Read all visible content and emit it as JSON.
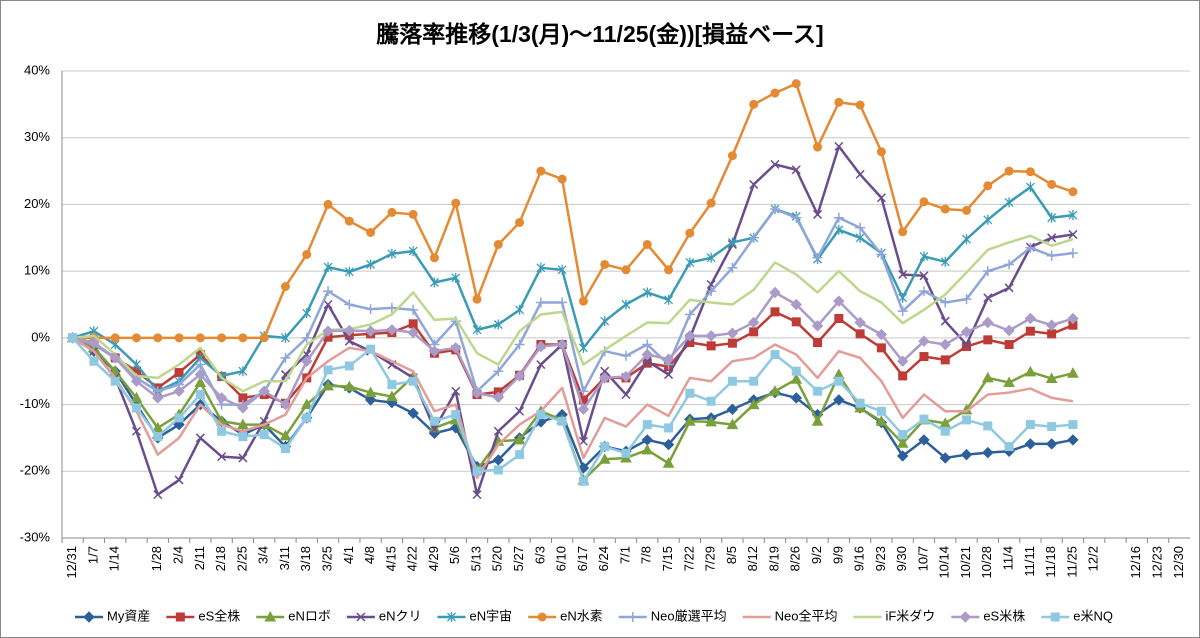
{
  "chart_data": {
    "type": "line",
    "title": "騰落率推移(1/3(月)～11/25(金))[損益ベース]",
    "categories": [
      "12/31",
      "1/7",
      "1/14",
      null,
      "1/28",
      "2/4",
      "2/11",
      "2/18",
      "2/25",
      "3/4",
      "3/11",
      "3/18",
      "3/25",
      "4/1",
      "4/8",
      "4/15",
      "4/22",
      "4/29",
      "5/6",
      "5/13",
      "5/20",
      "5/27",
      "6/3",
      "6/10",
      "6/17",
      "6/24",
      "7/1",
      "7/8",
      "7/15",
      "7/22",
      "7/29",
      "8/5",
      "8/12",
      "8/19",
      "8/26",
      "9/2",
      "9/9",
      "9/16",
      "9/23",
      "9/30",
      "10/7",
      "10/14",
      "10/21",
      "10/28",
      "11/4",
      "11/11",
      "11/18",
      "11/25",
      "12/2",
      null,
      "12/16",
      "12/23",
      "12/30"
    ],
    "ylim": [
      -30,
      40
    ],
    "yticks": [
      {
        "value": -30,
        "label": "-30%"
      },
      {
        "value": -20,
        "label": "-20%"
      },
      {
        "value": -10,
        "label": "-10%"
      },
      {
        "value": 0,
        "label": "0%"
      },
      {
        "value": 10,
        "label": "10%"
      },
      {
        "value": 20,
        "label": "20%"
      },
      {
        "value": 30,
        "label": "30%"
      },
      {
        "value": 40,
        "label": "40%"
      }
    ],
    "grid": true,
    "legend": "bottom",
    "series": [
      {
        "name": "My資産",
        "color": "#2d5f9c",
        "marker": "diamond",
        "values": [
          0,
          -2,
          -5,
          -10,
          -15,
          -13,
          -10,
          -12.5,
          -14.5,
          -13,
          -16.3,
          -12,
          -7,
          -7.5,
          -9.3,
          -9.7,
          -11.3,
          -14.3,
          -13.5,
          -19.3,
          -18.3,
          -15,
          -12.6,
          -11.5,
          -19.5,
          -16.3,
          -17,
          -15.3,
          -16,
          -12.2,
          -12,
          -10.7,
          -9.3,
          -8.2,
          -9,
          -11.5,
          -9.3,
          -10.5,
          -12.7,
          -17.7,
          -15.3,
          -18,
          -17.5,
          -17.2,
          -17,
          -15.9,
          -15.9,
          -15.3,
          null,
          null,
          null,
          null,
          null
        ]
      },
      {
        "name": "eS全株",
        "color": "#be3b36",
        "marker": "square",
        "values": [
          0,
          -1,
          -3,
          -5,
          -7.5,
          -5.2,
          -2.5,
          -5.8,
          -9,
          -8.5,
          -9.8,
          -6,
          0.1,
          0.4,
          0.6,
          0.8,
          2.1,
          -2.3,
          -1.8,
          -8.5,
          -8.1,
          -5.6,
          -1,
          -1,
          -9.3,
          -6,
          -6,
          -3.8,
          -4.3,
          -0.7,
          -1.2,
          -0.8,
          0.9,
          3.9,
          2.4,
          -0.7,
          2.9,
          0.6,
          -1.5,
          -5.7,
          -2.8,
          -3.3,
          -1.3,
          -0.3,
          -1,
          1,
          0.6,
          1.9,
          null,
          null,
          null,
          null,
          null
        ]
      },
      {
        "name": "eNロボ",
        "color": "#7aa03b",
        "marker": "triangle",
        "values": [
          0,
          -1.5,
          -5,
          -9,
          -13.5,
          -11.5,
          -6.7,
          -12.5,
          -13,
          -13,
          -14.7,
          -10,
          -7.2,
          -7.3,
          -8.2,
          -8.8,
          -5.8,
          -13.5,
          -12.3,
          -19.8,
          -15.5,
          -15.3,
          -11,
          -12.3,
          -21.3,
          -18.2,
          -18,
          -16.8,
          -18.8,
          -12.5,
          -12.6,
          -13,
          -10,
          -8,
          -6.2,
          -12.5,
          -5.5,
          -10.5,
          -12.5,
          -15.8,
          -12.3,
          -12.8,
          -10.8,
          -6,
          -6.7,
          -5.1,
          -6.1,
          -5.3,
          null,
          null,
          null,
          null,
          null
        ]
      },
      {
        "name": "eNクリ",
        "color": "#6a4d8c",
        "marker": "x",
        "values": [
          0,
          -2,
          -6,
          -14,
          -23.5,
          -21.3,
          -15,
          -17.8,
          -18,
          -12.5,
          -5.5,
          -2.5,
          5,
          -0.5,
          -2,
          -4,
          -6,
          -13.7,
          -8,
          -23.5,
          -14,
          -11,
          -4,
          -1,
          -15.5,
          -5,
          -8.5,
          -3.5,
          -5.5,
          0,
          8,
          14,
          23,
          26,
          25.2,
          18.5,
          28.7,
          24.5,
          21,
          9.5,
          9.3,
          2.5,
          -1,
          6,
          7.5,
          13.6,
          15,
          15.5,
          null,
          null,
          null,
          null,
          null
        ]
      },
      {
        "name": "eN宇宙",
        "color": "#3a9bb6",
        "marker": "star",
        "values": [
          0,
          1,
          -1,
          -4,
          -8,
          -6.5,
          -3,
          -5.7,
          -5,
          0.3,
          0,
          3.7,
          10.6,
          9.9,
          11,
          12.6,
          13,
          8.3,
          9,
          1.2,
          2,
          4.2,
          10.5,
          10.2,
          -1.5,
          2.5,
          5,
          6.8,
          5.7,
          11.3,
          12,
          14.3,
          15,
          19.3,
          18.2,
          11.8,
          16.2,
          15,
          12.7,
          6,
          12.2,
          11.4,
          14.8,
          17.7,
          20.3,
          22.6,
          18,
          18.4,
          null,
          null,
          null,
          null,
          null
        ]
      },
      {
        "name": "eN水素",
        "color": "#e48a33",
        "marker": "circle",
        "values": [
          0,
          0,
          0,
          0,
          0,
          0,
          0,
          0,
          0,
          0,
          7.7,
          12.5,
          20,
          17.5,
          15.8,
          18.8,
          18.5,
          12,
          20.2,
          5.8,
          14,
          17.3,
          25,
          23.8,
          5.5,
          11,
          10.2,
          14,
          10.2,
          15.7,
          20.2,
          27.3,
          35,
          36.7,
          38.1,
          28.6,
          35.3,
          34.9,
          27.9,
          15.9,
          20.4,
          19.3,
          19.1,
          22.8,
          25,
          24.9,
          23,
          21.9,
          null,
          null,
          null,
          null,
          null
        ]
      },
      {
        "name": "Neo厳選平均",
        "color": "#8fa6d8",
        "marker": "plus",
        "values": [
          0,
          -1,
          -3,
          -6,
          -8,
          -7,
          -4,
          -10,
          -10,
          -8,
          -3,
          0,
          7,
          5,
          4.3,
          4.5,
          4.2,
          -1,
          2.5,
          -8,
          -5,
          -1,
          5.3,
          5.3,
          -8,
          -2,
          -2.7,
          -1,
          -4,
          3.5,
          7,
          10.5,
          15,
          19.3,
          18,
          12,
          18,
          16.5,
          12.5,
          4,
          7,
          5.3,
          5.8,
          10,
          11,
          13.5,
          12.3,
          12.7,
          null,
          null,
          null,
          null,
          null
        ]
      },
      {
        "name": "Neo全平均",
        "color": "#e39c98",
        "marker": "none",
        "values": [
          0,
          -2,
          -6,
          -11,
          -17.5,
          -15,
          -10,
          -13,
          -14,
          -13,
          -11.5,
          -6,
          -3.5,
          -1.5,
          -2,
          -3.5,
          -5,
          -11,
          -10,
          -21,
          -16,
          -13,
          -11,
          -7.5,
          -18,
          -12,
          -13.3,
          -10,
          -11.7,
          -6,
          -6.5,
          -3.5,
          -3,
          -1,
          -2.5,
          -6,
          -2,
          -3,
          -6.5,
          -12,
          -8.5,
          -11,
          -11,
          -8.5,
          -8.2,
          -7.6,
          -9,
          -9.5,
          null,
          null,
          null,
          null,
          null
        ]
      },
      {
        "name": "iF米ダウ",
        "color": "#bdd78c",
        "marker": "none",
        "values": [
          0,
          0.3,
          -2.5,
          -5.7,
          -6,
          -4,
          -1.5,
          -6,
          -8,
          -6.5,
          -6.5,
          -1,
          1.2,
          1.3,
          2,
          3.5,
          6.8,
          2.7,
          2.9,
          -2.3,
          -4,
          1,
          3.5,
          3.9,
          -4,
          -1.8,
          0.3,
          2.3,
          2.2,
          5.7,
          5.3,
          5,
          7.2,
          11.3,
          9.5,
          6.8,
          10,
          7,
          5.3,
          2.2,
          4.2,
          6.5,
          9.8,
          13.2,
          14.3,
          15.3,
          13.8,
          14.8,
          null,
          null,
          null,
          null,
          null
        ]
      },
      {
        "name": "eS米株",
        "color": "#ab9bc8",
        "marker": "diamond",
        "values": [
          0,
          -0.7,
          -3,
          -6.5,
          -9,
          -8,
          -5.5,
          -9,
          -10.5,
          -8,
          -10,
          -3.5,
          1,
          1.1,
          1,
          1.2,
          0.8,
          -2,
          -1.5,
          -8.3,
          -8.9,
          -5.7,
          -1.3,
          -1,
          -10.7,
          -6,
          -5.8,
          -2.5,
          -3.2,
          0.3,
          0.3,
          0.7,
          2.3,
          6.8,
          5,
          1.8,
          5.5,
          2.3,
          0.5,
          -3.5,
          -0.5,
          -1,
          0.9,
          2.3,
          1.1,
          2.9,
          1.9,
          2.9,
          null,
          null,
          null,
          null,
          null
        ]
      },
      {
        "name": "e米NQ",
        "color": "#8fc9e1",
        "marker": "square",
        "values": [
          0,
          -3.5,
          -6.5,
          -10.5,
          -14.8,
          -12,
          -8.5,
          -14,
          -14.8,
          -14.5,
          -16.6,
          -12,
          -4.8,
          -4.2,
          -1.7,
          -7,
          -6.5,
          -12.5,
          -11.5,
          -20,
          -19.8,
          -17.5,
          -11.5,
          -12.5,
          -21.5,
          -16.3,
          -17.3,
          -13,
          -13.5,
          -8.3,
          -9.5,
          -6.5,
          -6.5,
          -2.5,
          -5,
          -8,
          -6.5,
          -9.8,
          -11,
          -14.5,
          -12.2,
          -14,
          -12.3,
          -13.2,
          -16.3,
          -13,
          -13.3,
          -13,
          null,
          null,
          null,
          null,
          null
        ]
      }
    ]
  }
}
